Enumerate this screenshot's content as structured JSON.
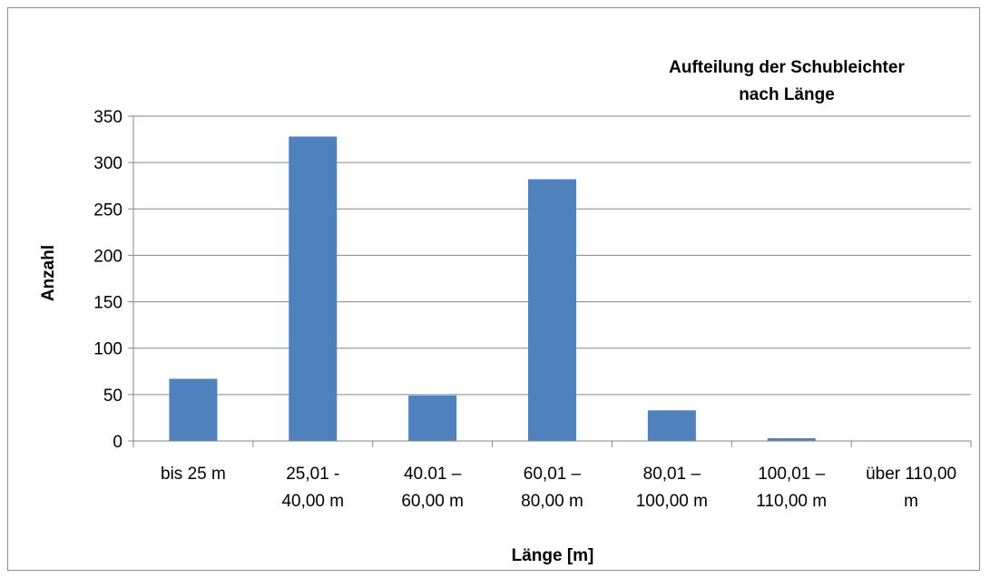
{
  "chart_data": {
    "type": "bar",
    "title": [
      "Aufteilung der Schubleichter",
      "nach Länge"
    ],
    "xlabel": "Länge [m]",
    "ylabel": "Anzahl",
    "ylim": [
      0,
      350
    ],
    "yticks": [
      0,
      50,
      100,
      150,
      200,
      250,
      300,
      350
    ],
    "categories": [
      [
        "bis 25 m"
      ],
      [
        "25,01 -",
        "40,00 m"
      ],
      [
        "40.01 –",
        "60,00 m"
      ],
      [
        "60,01 –",
        "80,00 m"
      ],
      [
        "80,01 –",
        "100,00 m"
      ],
      [
        "100,01 –",
        "110,00 m"
      ],
      [
        "über 110,00",
        "m"
      ]
    ],
    "values": [
      67,
      328,
      49,
      282,
      33,
      3,
      0
    ],
    "grid": true,
    "legend": "none",
    "colors": {
      "bar": "#4f81bd",
      "grid": "#868686",
      "axis": "#868686",
      "text": "#000000"
    }
  }
}
